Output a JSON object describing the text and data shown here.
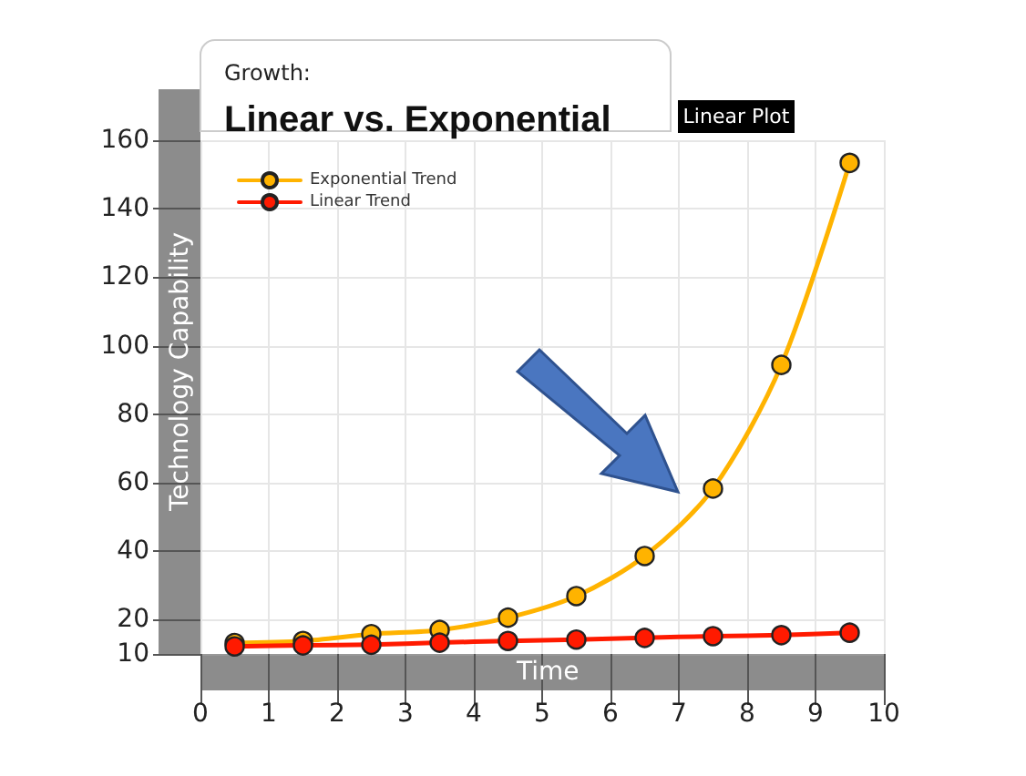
{
  "chart_data": {
    "type": "line",
    "title": "Linear vs. Exponential",
    "subtitle": "Growth:",
    "xlabel": "Time",
    "ylabel": "Technology Capability",
    "annotations": [
      "Linear Plot"
    ],
    "x": [
      0.5,
      1.5,
      2.5,
      3.5,
      4.5,
      5.5,
      6.5,
      7.5,
      8.5,
      9.5
    ],
    "series": [
      {
        "name": "Exponential Trend",
        "color": "#ffb300",
        "values": [
          13.2,
          13.8,
          15.8,
          17,
          20.6,
          26.9,
          38.6,
          58.3,
          94.4,
          153.4
        ]
      },
      {
        "name": "Linear Trend",
        "color": "#ff1a00",
        "values": [
          12.2,
          12.5,
          12.7,
          13.3,
          13.8,
          14.2,
          14.7,
          15.2,
          15.5,
          16.2
        ]
      }
    ],
    "xlim": [
      0,
      10
    ],
    "xticks": [
      0,
      1,
      2,
      3,
      4,
      5,
      6,
      7,
      8,
      9,
      10
    ],
    "ylim": [
      10,
      160
    ],
    "yticks": [
      10,
      20,
      40,
      60,
      80,
      100,
      120,
      140,
      160
    ],
    "grid": true,
    "legend": "top left",
    "marker": "circle",
    "line_style": "solid"
  }
}
